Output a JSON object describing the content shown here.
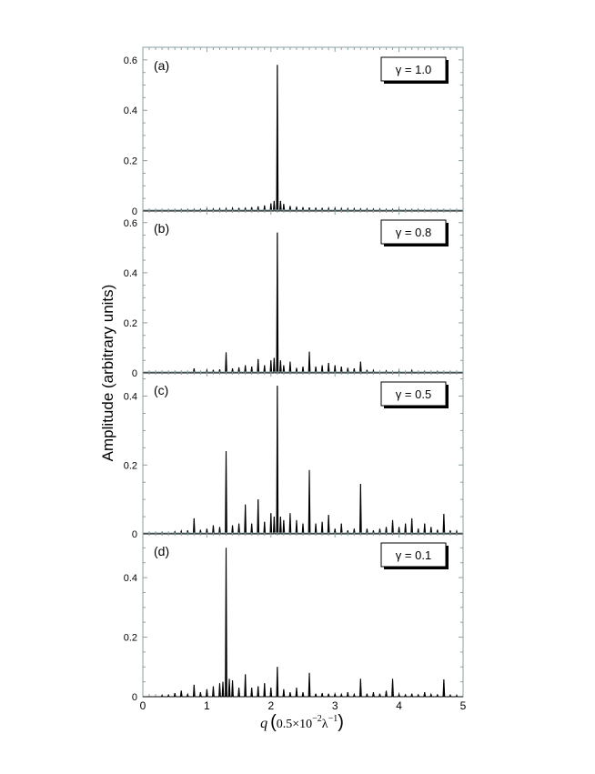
{
  "ylabel": "Amplitude    (arbitrary units)",
  "xlabel": {
    "var": "q",
    "open": "(",
    "base": "0.5",
    "times": "×",
    "ten": "10",
    "exp": "−2",
    "lambda": "λ",
    "lexp": "−1",
    "close": ")"
  },
  "x_ticks": [
    "0",
    "1",
    "2",
    "3",
    "4",
    "5"
  ],
  "colors": {
    "line": "#000000",
    "axis": "#8aa0a0",
    "box": "#000000"
  },
  "chart_data": [
    {
      "type": "line",
      "panel_label": "(a)",
      "legend": "γ = 1.0",
      "xlim": [
        0,
        5
      ],
      "ylim": [
        0,
        0.65
      ],
      "y_ticks": [
        0,
        0.2,
        0.4,
        0.6
      ],
      "y_tick_labels": [
        "0",
        "0.2",
        "0.4",
        "0.6"
      ],
      "peaks": [
        {
          "x": 0.1,
          "y": 0.002
        },
        {
          "x": 0.2,
          "y": 0.003
        },
        {
          "x": 0.3,
          "y": 0.003
        },
        {
          "x": 0.4,
          "y": 0.004
        },
        {
          "x": 0.5,
          "y": 0.004
        },
        {
          "x": 0.6,
          "y": 0.005
        },
        {
          "x": 0.7,
          "y": 0.005
        },
        {
          "x": 0.8,
          "y": 0.006
        },
        {
          "x": 0.9,
          "y": 0.006
        },
        {
          "x": 1.0,
          "y": 0.007
        },
        {
          "x": 1.1,
          "y": 0.008
        },
        {
          "x": 1.2,
          "y": 0.009
        },
        {
          "x": 1.3,
          "y": 0.01
        },
        {
          "x": 1.4,
          "y": 0.011
        },
        {
          "x": 1.5,
          "y": 0.012
        },
        {
          "x": 1.6,
          "y": 0.013
        },
        {
          "x": 1.7,
          "y": 0.015
        },
        {
          "x": 1.8,
          "y": 0.018
        },
        {
          "x": 1.9,
          "y": 0.022
        },
        {
          "x": 2.0,
          "y": 0.03
        },
        {
          "x": 2.05,
          "y": 0.04
        },
        {
          "x": 2.1,
          "y": 0.58
        },
        {
          "x": 2.15,
          "y": 0.04
        },
        {
          "x": 2.2,
          "y": 0.028
        },
        {
          "x": 2.3,
          "y": 0.02
        },
        {
          "x": 2.4,
          "y": 0.017
        },
        {
          "x": 2.5,
          "y": 0.015
        },
        {
          "x": 2.6,
          "y": 0.014
        },
        {
          "x": 2.7,
          "y": 0.013
        },
        {
          "x": 2.8,
          "y": 0.012
        },
        {
          "x": 2.9,
          "y": 0.011
        },
        {
          "x": 3.0,
          "y": 0.01
        },
        {
          "x": 3.1,
          "y": 0.01
        },
        {
          "x": 3.2,
          "y": 0.009
        },
        {
          "x": 3.3,
          "y": 0.009
        },
        {
          "x": 3.4,
          "y": 0.008
        },
        {
          "x": 3.5,
          "y": 0.008
        },
        {
          "x": 3.6,
          "y": 0.007
        },
        {
          "x": 3.7,
          "y": 0.007
        },
        {
          "x": 3.8,
          "y": 0.006
        },
        {
          "x": 3.9,
          "y": 0.006
        },
        {
          "x": 4.0,
          "y": 0.006
        },
        {
          "x": 4.1,
          "y": 0.005
        },
        {
          "x": 4.2,
          "y": 0.005
        },
        {
          "x": 4.3,
          "y": 0.005
        },
        {
          "x": 4.4,
          "y": 0.004
        },
        {
          "x": 4.5,
          "y": 0.004
        },
        {
          "x": 4.6,
          "y": 0.004
        },
        {
          "x": 4.7,
          "y": 0.004
        },
        {
          "x": 4.8,
          "y": 0.003
        },
        {
          "x": 4.9,
          "y": 0.003
        }
      ]
    },
    {
      "type": "line",
      "panel_label": "(b)",
      "legend": "γ = 0.8",
      "xlim": [
        0,
        5
      ],
      "ylim": [
        0,
        0.65
      ],
      "y_ticks": [
        0,
        0.2,
        0.4,
        0.6
      ],
      "y_tick_labels": [
        "0",
        "0.2",
        "0.4",
        "0.6"
      ],
      "peaks": [
        {
          "x": 0.5,
          "y": 0.004
        },
        {
          "x": 0.8,
          "y": 0.018
        },
        {
          "x": 1.0,
          "y": 0.01
        },
        {
          "x": 1.1,
          "y": 0.012
        },
        {
          "x": 1.2,
          "y": 0.014
        },
        {
          "x": 1.3,
          "y": 0.082
        },
        {
          "x": 1.4,
          "y": 0.018
        },
        {
          "x": 1.5,
          "y": 0.022
        },
        {
          "x": 1.6,
          "y": 0.03
        },
        {
          "x": 1.7,
          "y": 0.025
        },
        {
          "x": 1.8,
          "y": 0.055
        },
        {
          "x": 1.9,
          "y": 0.03
        },
        {
          "x": 2.0,
          "y": 0.05
        },
        {
          "x": 2.05,
          "y": 0.06
        },
        {
          "x": 2.1,
          "y": 0.56
        },
        {
          "x": 2.15,
          "y": 0.05
        },
        {
          "x": 2.2,
          "y": 0.03
        },
        {
          "x": 2.3,
          "y": 0.045
        },
        {
          "x": 2.4,
          "y": 0.02
        },
        {
          "x": 2.5,
          "y": 0.025
        },
        {
          "x": 2.6,
          "y": 0.085
        },
        {
          "x": 2.7,
          "y": 0.025
        },
        {
          "x": 2.8,
          "y": 0.03
        },
        {
          "x": 2.9,
          "y": 0.04
        },
        {
          "x": 3.0,
          "y": 0.03
        },
        {
          "x": 3.1,
          "y": 0.025
        },
        {
          "x": 3.2,
          "y": 0.02
        },
        {
          "x": 3.3,
          "y": 0.018
        },
        {
          "x": 3.4,
          "y": 0.045
        },
        {
          "x": 3.5,
          "y": 0.012
        },
        {
          "x": 3.6,
          "y": 0.01
        },
        {
          "x": 3.8,
          "y": 0.008
        },
        {
          "x": 4.0,
          "y": 0.006
        },
        {
          "x": 4.2,
          "y": 0.01
        },
        {
          "x": 4.4,
          "y": 0.005
        },
        {
          "x": 4.6,
          "y": 0.005
        },
        {
          "x": 4.8,
          "y": 0.004
        }
      ]
    },
    {
      "type": "line",
      "panel_label": "(c)",
      "legend": "γ = 0.5",
      "xlim": [
        0,
        5
      ],
      "ylim": [
        0,
        0.47
      ],
      "y_ticks": [
        0,
        0.2,
        0.4
      ],
      "y_tick_labels": [
        "0",
        "0.2",
        "0.4"
      ],
      "peaks": [
        {
          "x": 0.3,
          "y": 0.004
        },
        {
          "x": 0.5,
          "y": 0.006
        },
        {
          "x": 0.6,
          "y": 0.008
        },
        {
          "x": 0.7,
          "y": 0.01
        },
        {
          "x": 0.8,
          "y": 0.045
        },
        {
          "x": 0.9,
          "y": 0.012
        },
        {
          "x": 1.0,
          "y": 0.015
        },
        {
          "x": 1.1,
          "y": 0.025
        },
        {
          "x": 1.2,
          "y": 0.02
        },
        {
          "x": 1.3,
          "y": 0.24
        },
        {
          "x": 1.4,
          "y": 0.025
        },
        {
          "x": 1.5,
          "y": 0.03
        },
        {
          "x": 1.6,
          "y": 0.085
        },
        {
          "x": 1.7,
          "y": 0.03
        },
        {
          "x": 1.8,
          "y": 0.1
        },
        {
          "x": 1.9,
          "y": 0.035
        },
        {
          "x": 2.0,
          "y": 0.06
        },
        {
          "x": 2.05,
          "y": 0.05
        },
        {
          "x": 2.1,
          "y": 0.43
        },
        {
          "x": 2.15,
          "y": 0.05
        },
        {
          "x": 2.2,
          "y": 0.04
        },
        {
          "x": 2.3,
          "y": 0.06
        },
        {
          "x": 2.4,
          "y": 0.04
        },
        {
          "x": 2.5,
          "y": 0.03
        },
        {
          "x": 2.6,
          "y": 0.185
        },
        {
          "x": 2.7,
          "y": 0.03
        },
        {
          "x": 2.8,
          "y": 0.035
        },
        {
          "x": 2.9,
          "y": 0.055
        },
        {
          "x": 3.0,
          "y": 0.015
        },
        {
          "x": 3.1,
          "y": 0.03
        },
        {
          "x": 3.2,
          "y": 0.01
        },
        {
          "x": 3.3,
          "y": 0.015
        },
        {
          "x": 3.4,
          "y": 0.145
        },
        {
          "x": 3.5,
          "y": 0.015
        },
        {
          "x": 3.6,
          "y": 0.01
        },
        {
          "x": 3.7,
          "y": 0.015
        },
        {
          "x": 3.8,
          "y": 0.02
        },
        {
          "x": 3.9,
          "y": 0.04
        },
        {
          "x": 4.0,
          "y": 0.02
        },
        {
          "x": 4.1,
          "y": 0.03
        },
        {
          "x": 4.2,
          "y": 0.045
        },
        {
          "x": 4.3,
          "y": 0.015
        },
        {
          "x": 4.4,
          "y": 0.03
        },
        {
          "x": 4.5,
          "y": 0.02
        },
        {
          "x": 4.6,
          "y": 0.012
        },
        {
          "x": 4.7,
          "y": 0.058
        },
        {
          "x": 4.8,
          "y": 0.01
        },
        {
          "x": 4.9,
          "y": 0.008
        }
      ]
    },
    {
      "type": "line",
      "panel_label": "(d)",
      "legend": "γ = 0.1",
      "xlim": [
        0,
        5
      ],
      "ylim": [
        0,
        0.55
      ],
      "y_ticks": [
        0,
        0.2,
        0.4
      ],
      "y_tick_labels": [
        "0",
        "0.2",
        "0.4"
      ],
      "peaks": [
        {
          "x": 0.3,
          "y": 0.004
        },
        {
          "x": 0.4,
          "y": 0.005
        },
        {
          "x": 0.5,
          "y": 0.012
        },
        {
          "x": 0.6,
          "y": 0.02
        },
        {
          "x": 0.7,
          "y": 0.008
        },
        {
          "x": 0.8,
          "y": 0.04
        },
        {
          "x": 0.9,
          "y": 0.015
        },
        {
          "x": 1.0,
          "y": 0.025
        },
        {
          "x": 1.1,
          "y": 0.035
        },
        {
          "x": 1.2,
          "y": 0.045
        },
        {
          "x": 1.25,
          "y": 0.05
        },
        {
          "x": 1.3,
          "y": 0.5
        },
        {
          "x": 1.35,
          "y": 0.06
        },
        {
          "x": 1.4,
          "y": 0.055
        },
        {
          "x": 1.5,
          "y": 0.03
        },
        {
          "x": 1.6,
          "y": 0.075
        },
        {
          "x": 1.7,
          "y": 0.03
        },
        {
          "x": 1.8,
          "y": 0.035
        },
        {
          "x": 1.9,
          "y": 0.045
        },
        {
          "x": 2.0,
          "y": 0.03
        },
        {
          "x": 2.1,
          "y": 0.1
        },
        {
          "x": 2.2,
          "y": 0.025
        },
        {
          "x": 2.3,
          "y": 0.015
        },
        {
          "x": 2.4,
          "y": 0.03
        },
        {
          "x": 2.5,
          "y": 0.015
        },
        {
          "x": 2.6,
          "y": 0.08
        },
        {
          "x": 2.7,
          "y": 0.01
        },
        {
          "x": 2.8,
          "y": 0.012
        },
        {
          "x": 2.9,
          "y": 0.01
        },
        {
          "x": 3.0,
          "y": 0.01
        },
        {
          "x": 3.1,
          "y": 0.008
        },
        {
          "x": 3.2,
          "y": 0.015
        },
        {
          "x": 3.3,
          "y": 0.008
        },
        {
          "x": 3.4,
          "y": 0.06
        },
        {
          "x": 3.5,
          "y": 0.01
        },
        {
          "x": 3.6,
          "y": 0.015
        },
        {
          "x": 3.7,
          "y": 0.01
        },
        {
          "x": 3.8,
          "y": 0.02
        },
        {
          "x": 3.9,
          "y": 0.06
        },
        {
          "x": 4.0,
          "y": 0.008
        },
        {
          "x": 4.1,
          "y": 0.006
        },
        {
          "x": 4.2,
          "y": 0.01
        },
        {
          "x": 4.3,
          "y": 0.006
        },
        {
          "x": 4.4,
          "y": 0.015
        },
        {
          "x": 4.5,
          "y": 0.008
        },
        {
          "x": 4.6,
          "y": 0.006
        },
        {
          "x": 4.7,
          "y": 0.058
        },
        {
          "x": 4.8,
          "y": 0.005
        },
        {
          "x": 4.9,
          "y": 0.004
        }
      ]
    }
  ]
}
